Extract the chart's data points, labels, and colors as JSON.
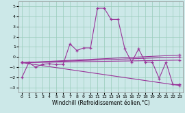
{
  "bg_color": "#cce8e8",
  "grid_color": "#99ccbb",
  "line_color": "#993399",
  "xlim": [
    -0.5,
    23.5
  ],
  "ylim": [
    -3.5,
    5.5
  ],
  "yticks": [
    -3,
    -2,
    -1,
    0,
    1,
    2,
    3,
    4,
    5
  ],
  "xticks": [
    0,
    1,
    2,
    3,
    4,
    5,
    6,
    7,
    8,
    9,
    10,
    11,
    12,
    13,
    14,
    15,
    16,
    17,
    18,
    19,
    20,
    21,
    22,
    23
  ],
  "xlabel": "Windchill (Refroidissement éolien,°C)",
  "series1_x": [
    0,
    1,
    2,
    3,
    4,
    5,
    6,
    7,
    8,
    9,
    10,
    11,
    12,
    13,
    14,
    15,
    16,
    17,
    18,
    19,
    20,
    21,
    22,
    23
  ],
  "series1_y": [
    -2.0,
    -0.55,
    -1.0,
    -0.7,
    -0.65,
    -0.75,
    -0.7,
    1.3,
    0.65,
    0.9,
    0.9,
    4.8,
    4.8,
    3.7,
    3.7,
    0.8,
    -0.5,
    0.8,
    -0.5,
    -0.5,
    -2.1,
    -0.5,
    -2.7,
    -2.7
  ],
  "trend1_x": [
    0,
    23
  ],
  "trend1_y": [
    -0.55,
    0.2
  ],
  "trend2_x": [
    0,
    23
  ],
  "trend2_y": [
    -0.55,
    -2.8
  ],
  "trend3_x": [
    0,
    23
  ],
  "trend3_y": [
    -0.55,
    -0.3
  ],
  "trend4_x": [
    0,
    23
  ],
  "trend4_y": [
    -0.55,
    0.0
  ]
}
